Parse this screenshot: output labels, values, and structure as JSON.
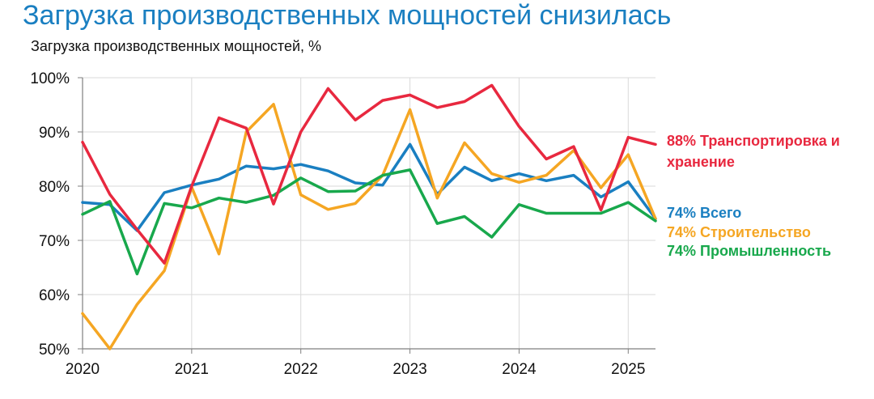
{
  "title": "Загрузка производственных мощностей снизилась",
  "subtitle": "Загрузка производственных мощностей, %",
  "chart_data": {
    "type": "line",
    "ylim": [
      50,
      100
    ],
    "xlim": [
      2020.0,
      2025.25
    ],
    "y_ticks": [
      50,
      60,
      70,
      80,
      90,
      100
    ],
    "y_tick_labels": [
      "50%",
      "60%",
      "70%",
      "80%",
      "90%",
      "100%"
    ],
    "x_ticks": [
      2020,
      2021,
      2022,
      2023,
      2024,
      2025
    ],
    "x_tick_labels": [
      "2020",
      "2021",
      "2022",
      "2023",
      "2024",
      "2025"
    ],
    "grid": true,
    "x": [
      2020.0,
      2020.25,
      2020.5,
      2020.75,
      2021.0,
      2021.25,
      2021.5,
      2021.75,
      2022.0,
      2022.25,
      2022.5,
      2022.75,
      2023.0,
      2023.25,
      2023.5,
      2023.75,
      2024.0,
      2024.25,
      2024.5,
      2024.75,
      2025.0,
      2025.25
    ],
    "series": [
      {
        "key": "total",
        "color": "#1a7fc1",
        "label": "74% Всего",
        "values": [
          77,
          76.6,
          71.8,
          78.8,
          80.2,
          81.3,
          83.7,
          83.2,
          84,
          82.8,
          80.6,
          80.2,
          87.7,
          78.5,
          83.5,
          81,
          82.3,
          81,
          82,
          78,
          80.8,
          74
        ]
      },
      {
        "key": "construction",
        "color": "#f5a623",
        "label": "74% Строительство",
        "values": [
          56.5,
          50,
          58.2,
          64.4,
          79.8,
          67.5,
          90,
          95.1,
          78.4,
          75.7,
          76.8,
          82,
          94.1,
          77.8,
          88,
          82.3,
          80.7,
          82,
          86.6,
          79.7,
          85.8,
          74
        ]
      },
      {
        "key": "industry",
        "color": "#18a84c",
        "label": "74% Промышленность",
        "values": [
          74.8,
          77.2,
          63.8,
          76.8,
          76,
          77.8,
          77,
          78.3,
          81.5,
          79,
          79.1,
          82,
          83,
          73.1,
          74.4,
          70.6,
          76.6,
          75,
          75,
          75,
          77,
          73.6
        ]
      },
      {
        "key": "transport",
        "color": "#e8283f",
        "label_line1": "88% Транспортировка и",
        "label_line2": "хранение",
        "values": [
          88.1,
          78.5,
          72,
          65.8,
          80,
          92.6,
          90.7,
          76.7,
          90,
          98,
          92.2,
          95.8,
          96.8,
          94.5,
          95.6,
          98.6,
          91,
          85,
          87.3,
          75.6,
          89,
          87.7
        ]
      }
    ]
  }
}
